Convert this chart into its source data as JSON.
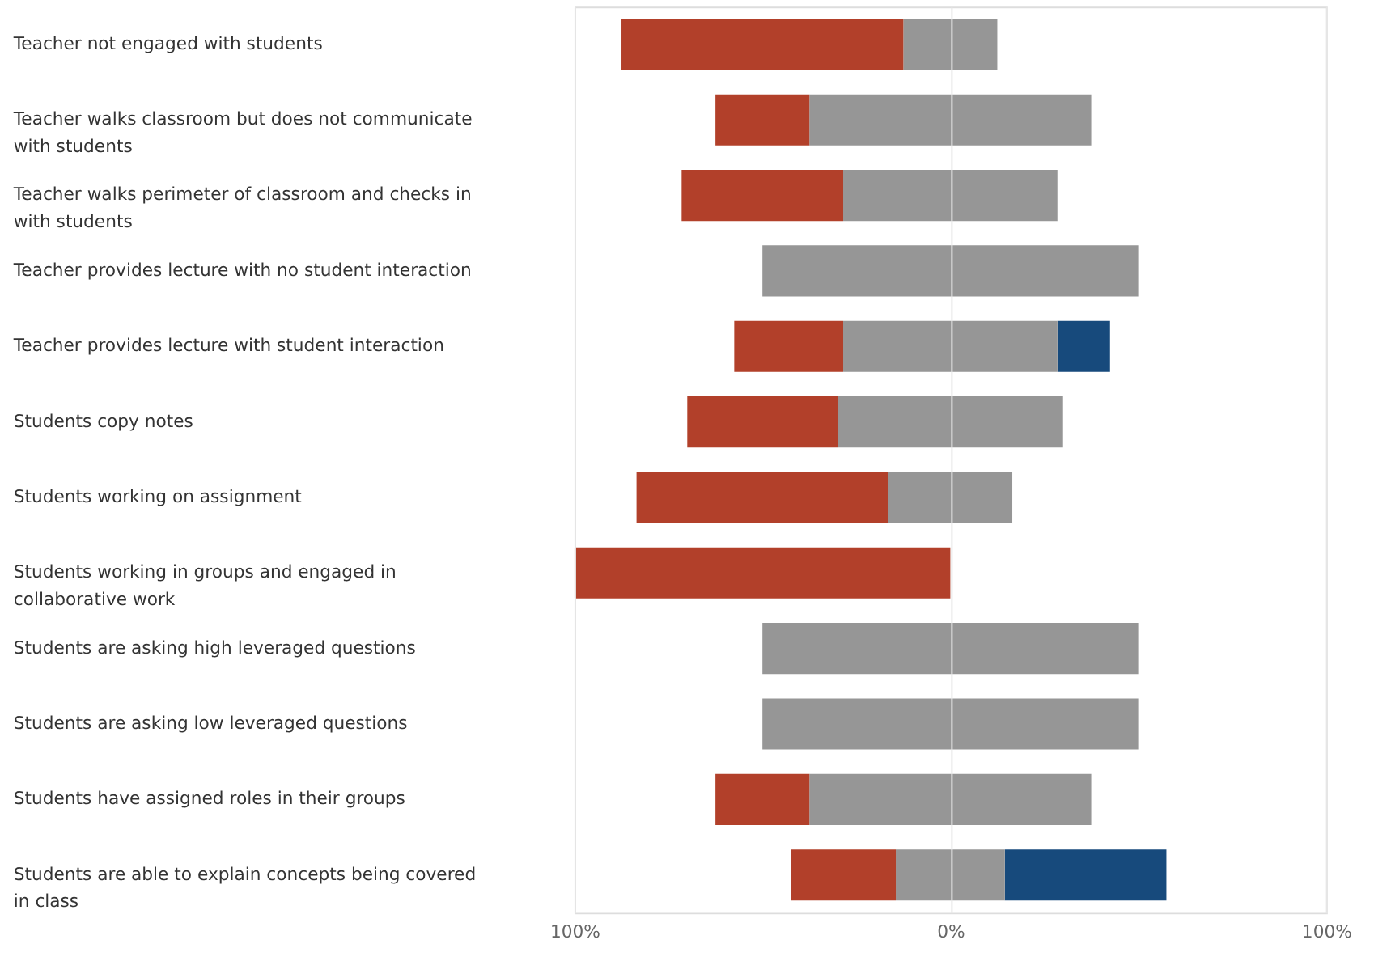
{
  "chart_data": {
    "type": "bar",
    "orientation": "horizontal",
    "categories": [
      "Teacher not engaged with students",
      "Teacher walks classroom but does not communicate with students",
      "Teacher walks perimeter of classroom and checks in with students",
      "Teacher provides lecture with no student interaction",
      "Teacher provides lecture with student interaction",
      "Students copy notes",
      "Students working on assignment",
      "Students working in groups and engaged in collaborative work",
      "Students are asking high leveraged questions",
      "Students are asking low leveraged questions",
      "Students have assigned roles in their groups",
      "Students are able to explain concepts being covered in class"
    ],
    "series": [
      {
        "color": "#b2402a",
        "values": [
          75,
          25,
          43,
          0,
          29,
          40,
          67,
          100,
          0,
          0,
          25,
          28
        ],
        "base": [
          -87.5,
          -62.5,
          -71.5,
          null,
          -57.5,
          -70,
          -83.5,
          -100,
          null,
          null,
          -62.5,
          -42.5
        ]
      },
      {
        "color": "#969696",
        "values": [
          25,
          75,
          57,
          100,
          57,
          60,
          33,
          0,
          100,
          100,
          75,
          29
        ],
        "base": [
          -12.5,
          -37.5,
          -28.5,
          -50,
          -28.5,
          -30,
          -16.5,
          null,
          -50,
          -50,
          -37.5,
          -14.5
        ]
      },
      {
        "color": "#174a7c",
        "values": [
          0,
          0,
          0,
          0,
          14,
          0,
          0,
          0,
          0,
          0,
          0,
          43
        ],
        "base": [
          null,
          null,
          null,
          null,
          28.5,
          null,
          null,
          null,
          null,
          null,
          null,
          14.5
        ]
      }
    ],
    "xlim": [
      -100,
      100
    ],
    "xticks": [
      {
        "value": -100,
        "label": "100%"
      },
      {
        "value": 0,
        "label": "0%"
      },
      {
        "value": 100,
        "label": "100%"
      }
    ],
    "grid": "x",
    "legend": false
  }
}
